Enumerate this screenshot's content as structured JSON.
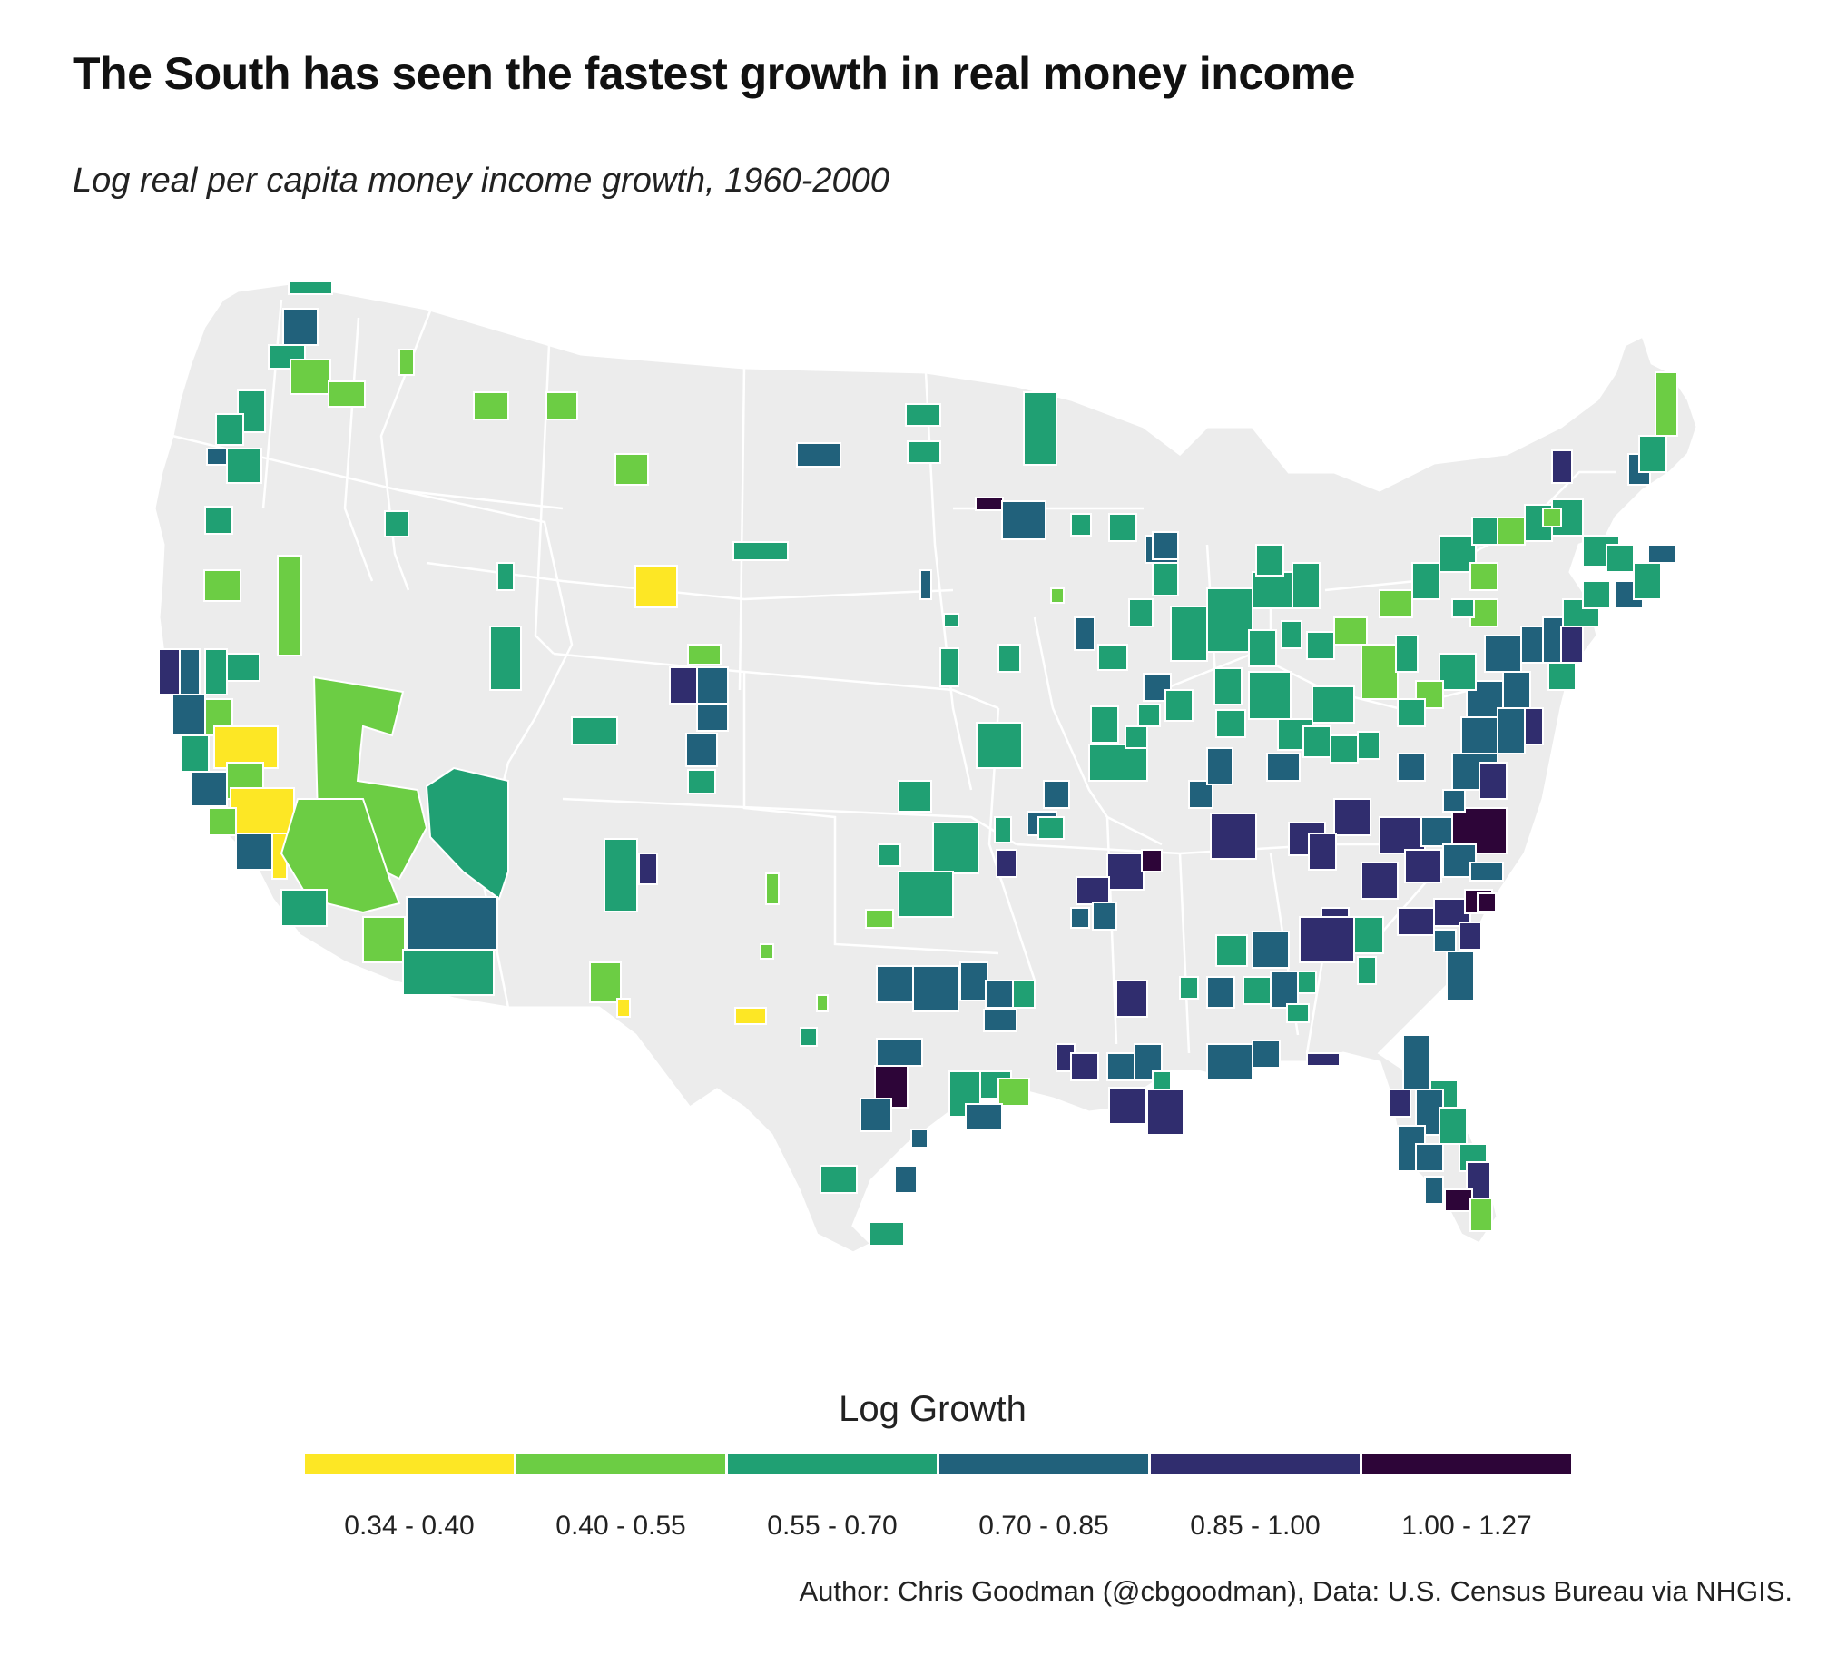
{
  "title": "The South has seen the fastest growth in real money income",
  "subtitle": "Log real per capita money income growth, 1960-2000",
  "caption": "Author: Chris Goodman (@cbgoodman), Data: U.S. Census Bureau via NHGIS.",
  "legend": {
    "title": "Log Growth",
    "bins": [
      {
        "label": "0.34 - 0.40",
        "color": "#fde725"
      },
      {
        "label": "0.40 - 0.55",
        "color": "#6ccd44"
      },
      {
        "label": "0.55 - 0.70",
        "color": "#20a073"
      },
      {
        "label": "0.70 - 0.85",
        "color": "#21617b"
      },
      {
        "label": "0.85 - 1.00",
        "color": "#302d6e"
      },
      {
        "label": "1.00 - 1.27",
        "color": "#2d0538"
      }
    ]
  },
  "map": {
    "background_color": "#ececec",
    "border_color": "#ffffff"
  }
}
